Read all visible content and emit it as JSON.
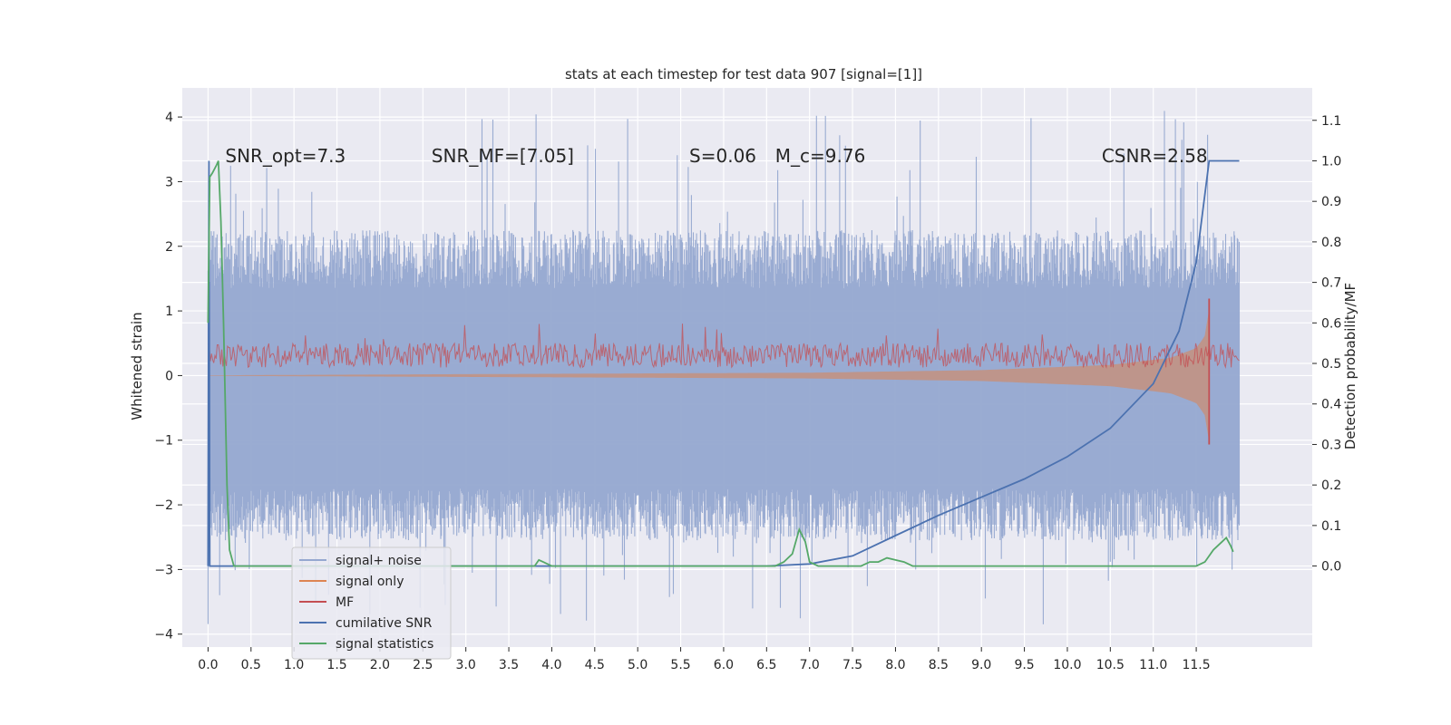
{
  "chart_data": {
    "type": "line",
    "title": "stats at each timestep for test data 907 [signal=[1]]",
    "xlabel": "",
    "ylabel": "Whitened strain",
    "ylabel_right": "Detection probability/MF",
    "xlim": [
      -0.3,
      12.85
    ],
    "ylim": [
      -4.2,
      4.45
    ],
    "ylim_right": [
      -0.2,
      1.18
    ],
    "x_ticks": [
      0.0,
      0.5,
      1.0,
      1.5,
      2.0,
      2.5,
      3.0,
      3.5,
      4.0,
      4.5,
      5.0,
      5.5,
      6.0,
      6.5,
      7.0,
      7.5,
      8.0,
      8.5,
      9.0,
      9.5,
      10.0,
      10.5,
      11.0,
      11.5
    ],
    "x_tick_labels": [
      "0.0",
      "0.5",
      "1.0",
      "1.5",
      "2.0",
      "2.5",
      "3.0",
      "3.5",
      "4.0",
      "4.5",
      "5.0",
      "5.5",
      "6.0",
      "6.5",
      "7.0",
      "7.5",
      "8.0",
      "8.5",
      "9.0",
      "9.5",
      "10.0",
      "10.5",
      "11.0",
      "11.5"
    ],
    "y_ticks": [
      -4,
      -3,
      -2,
      -1,
      0,
      1,
      2,
      3,
      4
    ],
    "y_tick_labels": [
      "−4",
      "−3",
      "−2",
      "−1",
      "0",
      "1",
      "2",
      "3",
      "4"
    ],
    "y_ticks_right": [
      0.0,
      0.1,
      0.2,
      0.3,
      0.4,
      0.5,
      0.6,
      0.7,
      0.8,
      0.9,
      1.0,
      1.1
    ],
    "y_tick_labels_right": [
      "0.0",
      "0.1",
      "0.2",
      "0.3",
      "0.4",
      "0.5",
      "0.6",
      "0.7",
      "0.8",
      "0.9",
      "1.0",
      "1.1"
    ],
    "grid": true,
    "legend_position": "lower-left",
    "annotations": [
      {
        "text": "SNR_opt=7.3",
        "x": 0.2
      },
      {
        "text": "SNR_MF=[7.05]",
        "x": 2.6
      },
      {
        "text": "S=0.06",
        "x": 5.6
      },
      {
        "text": "M_c=9.76",
        "x": 6.6
      },
      {
        "text": "CSNR=2.58",
        "x": 10.4
      }
    ],
    "annotation_y": 3.3,
    "series": [
      {
        "name": "signal+ noise",
        "color": "#95a8d0",
        "axis": "left",
        "kind": "noise",
        "x_range": [
          0.0,
          12.0
        ],
        "envelope": {
          "inner_max": 1.35,
          "inner_min": -1.75,
          "peak_max": 4.1,
          "peak_min": -3.85
        }
      },
      {
        "name": "signal only",
        "color": "#dd8452",
        "axis": "left",
        "kind": "chirp",
        "x_range": [
          0.0,
          11.65
        ],
        "amplitude_points": [
          [
            0.0,
            0.0
          ],
          [
            7.0,
            0.04
          ],
          [
            9.0,
            0.08
          ],
          [
            10.5,
            0.16
          ],
          [
            11.2,
            0.27
          ],
          [
            11.5,
            0.42
          ],
          [
            11.6,
            0.6
          ],
          [
            11.65,
            1.0
          ]
        ]
      },
      {
        "name": "MF",
        "color": "#c44e52",
        "axis": "right",
        "kind": "noise",
        "x_range": [
          0.0,
          12.0
        ],
        "band": [
          0.49,
          0.55
        ],
        "peak_max": 0.6,
        "spike": {
          "x": 11.65,
          "max": 0.66,
          "min": 0.3
        }
      },
      {
        "name": "cumilative SNR",
        "color": "#4c72b0",
        "axis": "right",
        "kind": "line",
        "points": [
          [
            0.0,
            0.0
          ],
          [
            0.01,
            1.0
          ],
          [
            0.02,
            0.0
          ],
          [
            6.5,
            0.0
          ],
          [
            7.0,
            0.005
          ],
          [
            7.5,
            0.025
          ],
          [
            8.0,
            0.075
          ],
          [
            8.5,
            0.125
          ],
          [
            9.0,
            0.17
          ],
          [
            9.5,
            0.215
          ],
          [
            10.0,
            0.27
          ],
          [
            10.5,
            0.34
          ],
          [
            11.0,
            0.45
          ],
          [
            11.3,
            0.58
          ],
          [
            11.5,
            0.75
          ],
          [
            11.65,
            1.0
          ],
          [
            12.0,
            1.0
          ]
        ]
      },
      {
        "name": "signal statistics",
        "color": "#55a868",
        "axis": "right",
        "kind": "line",
        "points": [
          [
            0.0,
            0.6
          ],
          [
            0.02,
            0.96
          ],
          [
            0.05,
            0.97
          ],
          [
            0.1,
            0.99
          ],
          [
            0.12,
            1.0
          ],
          [
            0.15,
            0.85
          ],
          [
            0.18,
            0.6
          ],
          [
            0.22,
            0.2
          ],
          [
            0.25,
            0.04
          ],
          [
            0.3,
            0.0
          ],
          [
            3.8,
            0.0
          ],
          [
            3.85,
            0.015
          ],
          [
            3.9,
            0.01
          ],
          [
            4.0,
            0.0
          ],
          [
            6.6,
            0.0
          ],
          [
            6.7,
            0.01
          ],
          [
            6.8,
            0.03
          ],
          [
            6.88,
            0.09
          ],
          [
            6.95,
            0.06
          ],
          [
            7.0,
            0.01
          ],
          [
            7.1,
            0.0
          ],
          [
            7.6,
            0.0
          ],
          [
            7.7,
            0.01
          ],
          [
            7.8,
            0.01
          ],
          [
            7.9,
            0.02
          ],
          [
            8.0,
            0.015
          ],
          [
            8.1,
            0.01
          ],
          [
            8.2,
            0.0
          ],
          [
            11.3,
            0.0
          ],
          [
            11.5,
            0.0
          ],
          [
            11.6,
            0.01
          ],
          [
            11.7,
            0.04
          ],
          [
            11.8,
            0.06
          ],
          [
            11.85,
            0.07
          ],
          [
            11.9,
            0.05
          ],
          [
            11.93,
            0.035
          ]
        ]
      }
    ]
  }
}
